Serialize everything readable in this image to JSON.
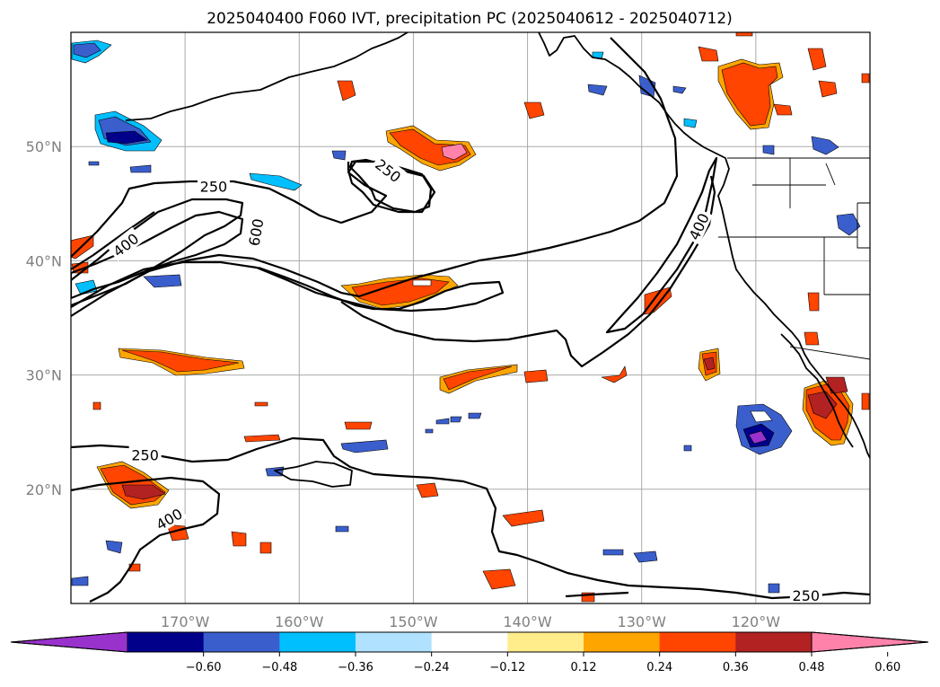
{
  "title": "2025040400 F060 IVT, precipitation PC (2025040612 - 2025040712)",
  "map": {
    "lon_range": [
      -180,
      -110
    ],
    "lat_range": [
      10,
      60
    ],
    "lon_ticks": [
      {
        "lon": -170,
        "label": "170°W"
      },
      {
        "lon": -160,
        "label": "160°W"
      },
      {
        "lon": -150,
        "label": "150°W"
      },
      {
        "lon": -140,
        "label": "140°W"
      },
      {
        "lon": -130,
        "label": "130°W"
      },
      {
        "lon": -120,
        "label": "120°W"
      }
    ],
    "lat_ticks": [
      {
        "lat": 50,
        "label": "50°N"
      },
      {
        "lat": 40,
        "label": "40°N"
      },
      {
        "lat": 30,
        "label": "30°N"
      },
      {
        "lat": 20,
        "label": "20°N"
      }
    ],
    "grid": true
  },
  "contour_labels": [
    {
      "text": "250",
      "lon": -167.5,
      "lat": 46.5,
      "rot": 0
    },
    {
      "text": "600",
      "lon": -163.8,
      "lat": 42.5,
      "rot": -80
    },
    {
      "text": "400",
      "lon": -175.2,
      "lat": 41.4,
      "rot": -38
    },
    {
      "text": "250",
      "lon": -152.2,
      "lat": 47.9,
      "rot": 38
    },
    {
      "text": "400",
      "lon": -125.0,
      "lat": 43.0,
      "rot": -65
    },
    {
      "text": "250",
      "lon": -173.5,
      "lat": 23.0,
      "rot": 0
    },
    {
      "text": "400",
      "lon": -171.4,
      "lat": 17.4,
      "rot": -30
    },
    {
      "text": "250",
      "lon": -115.6,
      "lat": 10.7,
      "rot": 0
    }
  ],
  "colorbar": {
    "ticks": [
      "−0.60",
      "−0.48",
      "−0.36",
      "−0.24",
      "−0.12",
      "0.12",
      "0.24",
      "0.36",
      "0.48",
      "0.60"
    ],
    "colors": [
      "#9932CC",
      "#00008B",
      "#3A5FCD",
      "#00BFFF",
      "#B0E2FF",
      "#FFFFFF",
      "#FFEC8B",
      "#FFA500",
      "#FF4500",
      "#B22222",
      "#FF82AB"
    ]
  }
}
